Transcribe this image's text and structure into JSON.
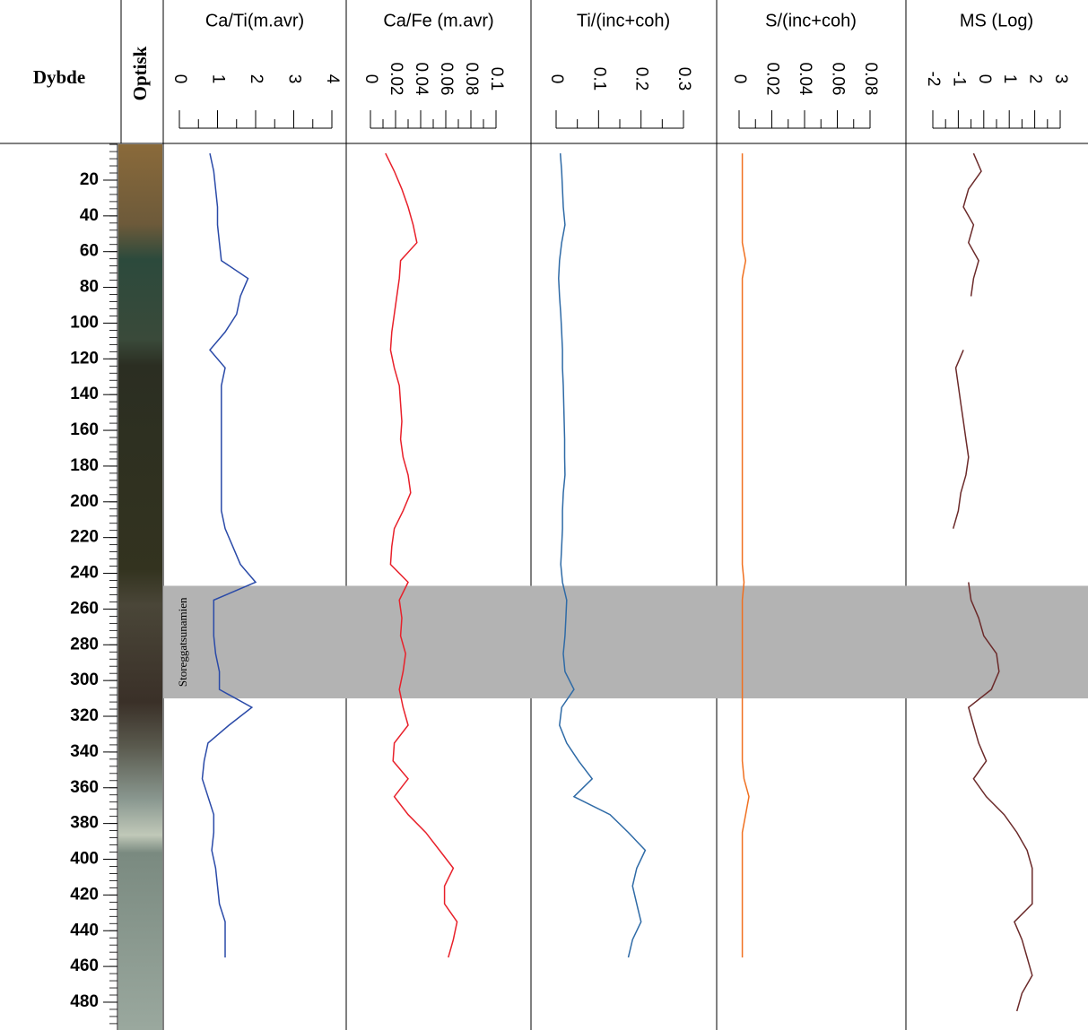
{
  "chart_data": {
    "type": "line",
    "orientation": "vertical",
    "xlabel": "Dybde",
    "image_label": "Optisk",
    "x": [
      5,
      15,
      25,
      35,
      45,
      55,
      65,
      75,
      85,
      95,
      105,
      115,
      125,
      135,
      145,
      155,
      165,
      175,
      185,
      195,
      205,
      215,
      225,
      235,
      245,
      255,
      265,
      275,
      285,
      295,
      305,
      315,
      325,
      335,
      345,
      355,
      365,
      375,
      385,
      395,
      405,
      415,
      425,
      435,
      445,
      455,
      465,
      475,
      485
    ],
    "xlim": [
      0,
      495
    ],
    "xticks": [
      20,
      40,
      60,
      80,
      100,
      120,
      140,
      160,
      180,
      200,
      220,
      240,
      260,
      280,
      300,
      320,
      340,
      360,
      380,
      400,
      420,
      440,
      460,
      480
    ],
    "annotation": {
      "text": "Storeggatsunamien",
      "range": [
        247,
        310
      ],
      "color": "#b3b3b3"
    },
    "series": [
      {
        "name": "Ca/Ti(m.avr)",
        "color": "#2a4aa8",
        "ylim": [
          0,
          4
        ],
        "yticks": [
          0,
          1,
          2,
          3,
          4
        ],
        "values": [
          0.8,
          0.9,
          0.95,
          1.0,
          1.0,
          1.05,
          1.1,
          1.8,
          1.6,
          1.5,
          1.2,
          0.8,
          1.2,
          1.1,
          1.1,
          1.1,
          1.1,
          1.1,
          1.1,
          1.1,
          1.1,
          1.2,
          1.4,
          1.6,
          2.0,
          0.9,
          0.9,
          0.9,
          0.95,
          1.05,
          1.05,
          1.9,
          1.3,
          0.75,
          0.65,
          0.6,
          0.75,
          0.9,
          0.9,
          0.85,
          0.95,
          1.0,
          1.05,
          1.2,
          1.2,
          1.2,
          null,
          null,
          null
        ]
      },
      {
        "name": "Ca/Fe (m.avr)",
        "color": "#e8202a",
        "ylim": [
          0,
          0.1
        ],
        "yticks": [
          0,
          0.02,
          0.04,
          0.06,
          0.08,
          0.1
        ],
        "values": [
          0.012,
          0.019,
          0.025,
          0.03,
          0.034,
          0.037,
          0.024,
          0.023,
          0.021,
          0.019,
          0.017,
          0.016,
          0.019,
          0.023,
          0.024,
          0.025,
          0.024,
          0.026,
          0.03,
          0.032,
          0.026,
          0.019,
          0.017,
          0.016,
          0.03,
          0.023,
          0.025,
          0.024,
          0.028,
          0.026,
          0.023,
          0.026,
          0.03,
          0.019,
          0.018,
          0.03,
          0.019,
          0.03,
          0.044,
          0.055,
          0.066,
          0.059,
          0.059,
          0.069,
          0.066,
          0.062,
          null,
          null,
          null
        ]
      },
      {
        "name": "Ti/(inc+coh)",
        "color": "#2e6aa6",
        "ylim": [
          0,
          0.3
        ],
        "yticks": [
          0,
          0.1,
          0.2,
          0.3
        ],
        "values": [
          0.01,
          0.013,
          0.015,
          0.017,
          0.021,
          0.013,
          0.008,
          0.006,
          0.008,
          0.011,
          0.013,
          0.015,
          0.015,
          0.017,
          0.018,
          0.019,
          0.02,
          0.02,
          0.021,
          0.017,
          0.015,
          0.015,
          0.013,
          0.011,
          0.015,
          0.025,
          0.023,
          0.021,
          0.017,
          0.021,
          0.042,
          0.013,
          0.008,
          0.025,
          0.053,
          0.085,
          0.042,
          0.127,
          0.17,
          0.21,
          0.19,
          0.18,
          0.19,
          0.2,
          0.18,
          0.17,
          null,
          null,
          null
        ]
      },
      {
        "name": "S/(inc+coh)",
        "color": "#f07020",
        "ylim": [
          0,
          0.08
        ],
        "yticks": [
          0,
          0.02,
          0.04,
          0.06,
          0.08
        ],
        "values": [
          0.002,
          0.002,
          0.002,
          0.002,
          0.002,
          0.002,
          0.004,
          0.002,
          0.002,
          0.002,
          0.002,
          0.002,
          0.002,
          0.002,
          0.002,
          0.002,
          0.002,
          0.002,
          0.002,
          0.002,
          0.002,
          0.002,
          0.002,
          0.002,
          0.003,
          0.002,
          0.002,
          0.002,
          0.002,
          0.002,
          0.002,
          0.002,
          0.002,
          0.002,
          0.002,
          0.003,
          0.006,
          0.004,
          0.002,
          0.002,
          0.002,
          0.002,
          0.002,
          0.002,
          0.002,
          0.002,
          null,
          null,
          null
        ]
      },
      {
        "name": "MS (Log)",
        "color": "#6b2a2a",
        "ylim": [
          -2,
          3
        ],
        "yticks": [
          -2,
          -1,
          0,
          1,
          2,
          3
        ],
        "values": [
          -0.4,
          -0.1,
          -0.6,
          -0.8,
          -0.4,
          -0.6,
          -0.2,
          -0.4,
          -0.5,
          null,
          null,
          -0.8,
          -1.1,
          -1.0,
          -0.9,
          -0.8,
          -0.7,
          -0.6,
          -0.7,
          -0.9,
          -1.0,
          -1.2,
          null,
          null,
          -0.6,
          -0.5,
          -0.2,
          0.0,
          0.5,
          0.6,
          0.3,
          -0.6,
          -0.4,
          -0.2,
          0.1,
          -0.4,
          0.1,
          0.8,
          1.3,
          1.7,
          1.9,
          1.9,
          1.9,
          1.2,
          1.5,
          1.7,
          1.9,
          1.5,
          1.3
        ]
      }
    ]
  }
}
